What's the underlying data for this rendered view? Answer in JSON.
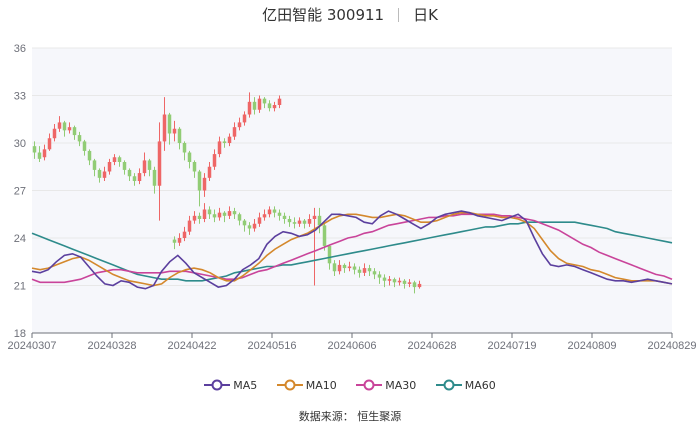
{
  "header": {
    "title": "亿田智能 300911",
    "period": "日K"
  },
  "source": "数据来源：  恒生聚源",
  "colors": {
    "up": "#ee6666",
    "down": "#91cc75",
    "MA5": "#5b3f9e",
    "MA10": "#d4882c",
    "MA30": "#c9449a",
    "MA60": "#2e8b8b",
    "grid": "#e8e8e8",
    "plot_bg": "#f6f7fb"
  },
  "chart_data": {
    "type": "candlestick",
    "title": "亿田智能 300911",
    "period": "日K",
    "x_tick_labels": [
      "20240307",
      "20240328",
      "20240422",
      "20240516",
      "20240606",
      "20240628",
      "20240719",
      "20240809",
      "20240829"
    ],
    "y_ticks": [
      18,
      21,
      24,
      27,
      30,
      33,
      36
    ],
    "ylim": [
      18,
      36
    ],
    "grid": true,
    "legend_position": "bottom",
    "legend": [
      "MA5",
      "MA10",
      "MA30",
      "MA60"
    ],
    "candles": [
      [
        29.8,
        29.4,
        30.1,
        29.0
      ],
      [
        29.4,
        29.0,
        29.8,
        28.8
      ],
      [
        29.1,
        29.6,
        29.9,
        28.9
      ],
      [
        29.6,
        30.3,
        30.6,
        29.5
      ],
      [
        30.3,
        30.9,
        31.2,
        30.1
      ],
      [
        30.9,
        31.3,
        31.7,
        30.7
      ],
      [
        31.3,
        30.8,
        31.4,
        30.4
      ],
      [
        30.8,
        31.0,
        31.3,
        30.6
      ],
      [
        31.0,
        30.5,
        31.1,
        30.2
      ],
      [
        30.5,
        30.1,
        30.7,
        29.8
      ],
      [
        30.1,
        29.5,
        30.2,
        29.2
      ],
      [
        29.5,
        28.9,
        29.6,
        28.6
      ],
      [
        28.9,
        28.3,
        29.0,
        27.9
      ],
      [
        28.3,
        27.8,
        28.4,
        27.5
      ],
      [
        27.8,
        28.2,
        28.5,
        27.6
      ],
      [
        28.2,
        28.8,
        29.0,
        28.0
      ],
      [
        28.8,
        29.1,
        29.3,
        28.6
      ],
      [
        29.1,
        28.8,
        29.2,
        28.5
      ],
      [
        28.8,
        28.3,
        28.9,
        28.0
      ],
      [
        28.3,
        27.9,
        28.4,
        27.6
      ],
      [
        27.9,
        27.6,
        28.1,
        27.3
      ],
      [
        27.6,
        28.1,
        28.4,
        27.4
      ],
      [
        28.1,
        28.9,
        29.4,
        27.9
      ],
      [
        28.9,
        28.3,
        29.0,
        27.9
      ],
      [
        28.3,
        27.3,
        28.5,
        26.8
      ],
      [
        27.3,
        30.1,
        31.3,
        25.1
      ],
      [
        30.1,
        31.8,
        32.9,
        29.5
      ],
      [
        31.8,
        30.6,
        31.9,
        29.9
      ],
      [
        30.6,
        30.9,
        31.4,
        30.1
      ],
      [
        30.9,
        30.0,
        31.0,
        29.6
      ],
      [
        30.0,
        29.4,
        30.1,
        28.9
      ],
      [
        29.4,
        28.8,
        29.5,
        28.4
      ],
      [
        28.8,
        28.2,
        28.9,
        27.8
      ],
      [
        28.2,
        27.0,
        28.3,
        26.0
      ],
      [
        27.0,
        27.8,
        28.1,
        26.6
      ],
      [
        27.8,
        28.5,
        28.8,
        27.6
      ],
      [
        28.5,
        29.3,
        29.6,
        28.3
      ],
      [
        29.3,
        30.1,
        30.4,
        29.1
      ],
      [
        30.1,
        30.0,
        30.3,
        29.7
      ],
      [
        30.0,
        30.4,
        30.6,
        29.8
      ],
      [
        30.4,
        31.0,
        31.3,
        30.2
      ],
      [
        31.0,
        31.3,
        31.6,
        30.8
      ],
      [
        31.3,
        31.8,
        32.0,
        31.1
      ],
      [
        31.8,
        32.6,
        33.2,
        31.6
      ],
      [
        32.6,
        32.1,
        32.9,
        31.8
      ],
      [
        32.1,
        32.8,
        33.0,
        31.9
      ],
      [
        32.8,
        32.5,
        32.9,
        32.2
      ],
      [
        32.5,
        32.2,
        32.7,
        32.0
      ],
      [
        32.2,
        32.4,
        32.6,
        32.0
      ],
      [
        32.4,
        32.8,
        33.0,
        32.2
      ]
    ],
    "candles_part2": [
      [
        23.9,
        23.7,
        24.1,
        23.3
      ],
      [
        23.7,
        24.0,
        24.3,
        23.5
      ],
      [
        24.0,
        24.4,
        24.7,
        23.8
      ],
      [
        24.4,
        25.1,
        25.4,
        24.2
      ],
      [
        25.1,
        25.4,
        25.7,
        24.9
      ],
      [
        25.4,
        25.2,
        25.6,
        24.9
      ],
      [
        25.2,
        25.8,
        26.2,
        25.0
      ],
      [
        25.8,
        25.5,
        26.0,
        25.2
      ],
      [
        25.5,
        25.3,
        25.8,
        25.0
      ],
      [
        25.3,
        25.6,
        25.9,
        25.1
      ],
      [
        25.6,
        25.4,
        25.7,
        25.0
      ],
      [
        25.4,
        25.7,
        26.0,
        25.2
      ],
      [
        25.7,
        25.5,
        25.9,
        25.2
      ],
      [
        25.5,
        25.1,
        25.6,
        24.8
      ],
      [
        25.1,
        24.8,
        25.2,
        24.4
      ],
      [
        24.8,
        24.6,
        25.0,
        24.2
      ],
      [
        24.6,
        24.9,
        25.2,
        24.4
      ],
      [
        24.9,
        25.3,
        25.6,
        24.7
      ],
      [
        25.3,
        25.5,
        25.8,
        25.1
      ],
      [
        25.5,
        25.8,
        26.0,
        25.3
      ],
      [
        25.8,
        25.6,
        26.0,
        25.3
      ],
      [
        25.6,
        25.4,
        25.8,
        25.1
      ],
      [
        25.4,
        25.2,
        25.6,
        24.9
      ],
      [
        25.2,
        25.0,
        25.4,
        24.7
      ],
      [
        25.0,
        24.9,
        25.3,
        24.6
      ],
      [
        24.9,
        25.1,
        25.3,
        24.7
      ],
      [
        25.1,
        24.9,
        25.2,
        24.6
      ],
      [
        24.9,
        25.2,
        25.5,
        24.7
      ],
      [
        25.2,
        25.4,
        25.9,
        21.0
      ],
      [
        25.4,
        24.8,
        25.9,
        24.3
      ],
      [
        24.8,
        23.5,
        24.9,
        23.2
      ],
      [
        23.5,
        22.4,
        23.6,
        22.0
      ],
      [
        22.4,
        21.9,
        22.6,
        21.6
      ],
      [
        21.9,
        22.3,
        22.6,
        21.7
      ],
      [
        22.3,
        22.1,
        22.4,
        21.8
      ],
      [
        22.1,
        22.2,
        22.5,
        21.9
      ],
      [
        22.2,
        22.0,
        22.4,
        21.7
      ],
      [
        22.0,
        21.8,
        22.2,
        21.5
      ],
      [
        21.8,
        22.1,
        22.4,
        21.6
      ],
      [
        22.1,
        21.9,
        22.3,
        21.6
      ],
      [
        21.9,
        21.7,
        22.1,
        21.4
      ],
      [
        21.7,
        21.5,
        21.9,
        21.1
      ],
      [
        21.5,
        21.3,
        21.7,
        20.9
      ],
      [
        21.3,
        21.4,
        21.6,
        21.0
      ],
      [
        21.4,
        21.2,
        21.5,
        20.9
      ],
      [
        21.2,
        21.3,
        21.5,
        21.0
      ],
      [
        21.3,
        21.1,
        21.4,
        20.8
      ],
      [
        21.1,
        21.2,
        21.4,
        20.9
      ],
      [
        21.2,
        20.9,
        21.3,
        20.5
      ],
      [
        20.9,
        21.1,
        21.3,
        20.8
      ]
    ],
    "MA5": [
      21.9,
      21.8,
      22.0,
      22.5,
      22.9,
      23.0,
      22.8,
      22.2,
      21.6,
      21.1,
      21.0,
      21.3,
      21.2,
      20.9,
      20.8,
      21.0,
      21.9,
      22.5,
      22.9,
      22.4,
      21.8,
      21.5,
      21.2,
      20.9,
      21.0,
      21.4,
      22.0,
      22.3,
      22.7,
      23.6,
      24.1,
      24.4,
      24.3,
      24.1,
      24.2,
      24.5,
      25.0,
      25.5,
      25.5,
      25.4,
      25.3,
      25.0,
      24.9,
      25.4,
      25.7,
      25.5,
      25.2,
      24.9,
      24.6,
      24.9,
      25.3,
      25.5,
      25.6,
      25.7,
      25.6,
      25.4,
      25.3,
      25.2,
      25.1,
      25.3,
      25.5,
      25.1,
      24.0,
      23.0,
      22.3,
      22.2,
      22.3,
      22.2,
      22.0,
      21.8,
      21.6,
      21.4,
      21.3,
      21.3,
      21.2,
      21.3,
      21.4,
      21.3,
      21.2,
      21.1
    ],
    "MA10": [
      22.1,
      22.0,
      22.1,
      22.3,
      22.5,
      22.7,
      22.8,
      22.6,
      22.3,
      22.0,
      21.7,
      21.5,
      21.3,
      21.2,
      21.1,
      21.0,
      21.1,
      21.5,
      21.8,
      22.0,
      22.1,
      22.0,
      21.8,
      21.5,
      21.3,
      21.3,
      21.6,
      22.0,
      22.4,
      22.9,
      23.3,
      23.6,
      23.9,
      24.1,
      24.3,
      24.6,
      24.9,
      25.2,
      25.4,
      25.5,
      25.5,
      25.4,
      25.3,
      25.3,
      25.4,
      25.5,
      25.4,
      25.2,
      25.0,
      25.0,
      25.1,
      25.3,
      25.5,
      25.6,
      25.6,
      25.5,
      25.4,
      25.4,
      25.3,
      25.3,
      25.2,
      25.0,
      24.6,
      23.9,
      23.2,
      22.7,
      22.4,
      22.3,
      22.2,
      22.0,
      21.9,
      21.7,
      21.5,
      21.4,
      21.3,
      21.3,
      21.3,
      21.3,
      21.2,
      21.1
    ],
    "MA30": [
      21.4,
      21.2,
      21.2,
      21.2,
      21.2,
      21.3,
      21.4,
      21.6,
      21.8,
      21.9,
      22.0,
      22.0,
      21.9,
      21.8,
      21.8,
      21.8,
      21.8,
      21.9,
      21.9,
      21.9,
      21.8,
      21.7,
      21.6,
      21.5,
      21.4,
      21.4,
      21.5,
      21.7,
      21.9,
      22.0,
      22.2,
      22.4,
      22.6,
      22.8,
      23.0,
      23.2,
      23.4,
      23.6,
      23.8,
      24.0,
      24.1,
      24.3,
      24.4,
      24.6,
      24.8,
      24.9,
      25.0,
      25.1,
      25.2,
      25.3,
      25.3,
      25.4,
      25.4,
      25.5,
      25.5,
      25.5,
      25.5,
      25.5,
      25.4,
      25.4,
      25.3,
      25.2,
      25.1,
      24.9,
      24.7,
      24.5,
      24.2,
      23.9,
      23.6,
      23.4,
      23.1,
      22.9,
      22.7,
      22.5,
      22.3,
      22.1,
      21.9,
      21.7,
      21.6,
      21.4
    ],
    "MA60": [
      24.3,
      24.1,
      23.9,
      23.7,
      23.5,
      23.3,
      23.1,
      22.9,
      22.7,
      22.5,
      22.3,
      22.1,
      21.9,
      21.7,
      21.6,
      21.5,
      21.4,
      21.4,
      21.4,
      21.3,
      21.3,
      21.3,
      21.4,
      21.5,
      21.6,
      21.8,
      21.9,
      22.0,
      22.1,
      22.2,
      22.2,
      22.3,
      22.3,
      22.4,
      22.5,
      22.6,
      22.7,
      22.8,
      22.9,
      23.0,
      23.1,
      23.2,
      23.3,
      23.4,
      23.5,
      23.6,
      23.7,
      23.8,
      23.9,
      24.0,
      24.1,
      24.2,
      24.3,
      24.4,
      24.5,
      24.6,
      24.7,
      24.7,
      24.8,
      24.9,
      24.9,
      25.0,
      25.0,
      25.0,
      25.0,
      25.0,
      25.0,
      25.0,
      24.9,
      24.8,
      24.7,
      24.6,
      24.4,
      24.3,
      24.2,
      24.1,
      24.0,
      23.9,
      23.8,
      23.7
    ]
  }
}
